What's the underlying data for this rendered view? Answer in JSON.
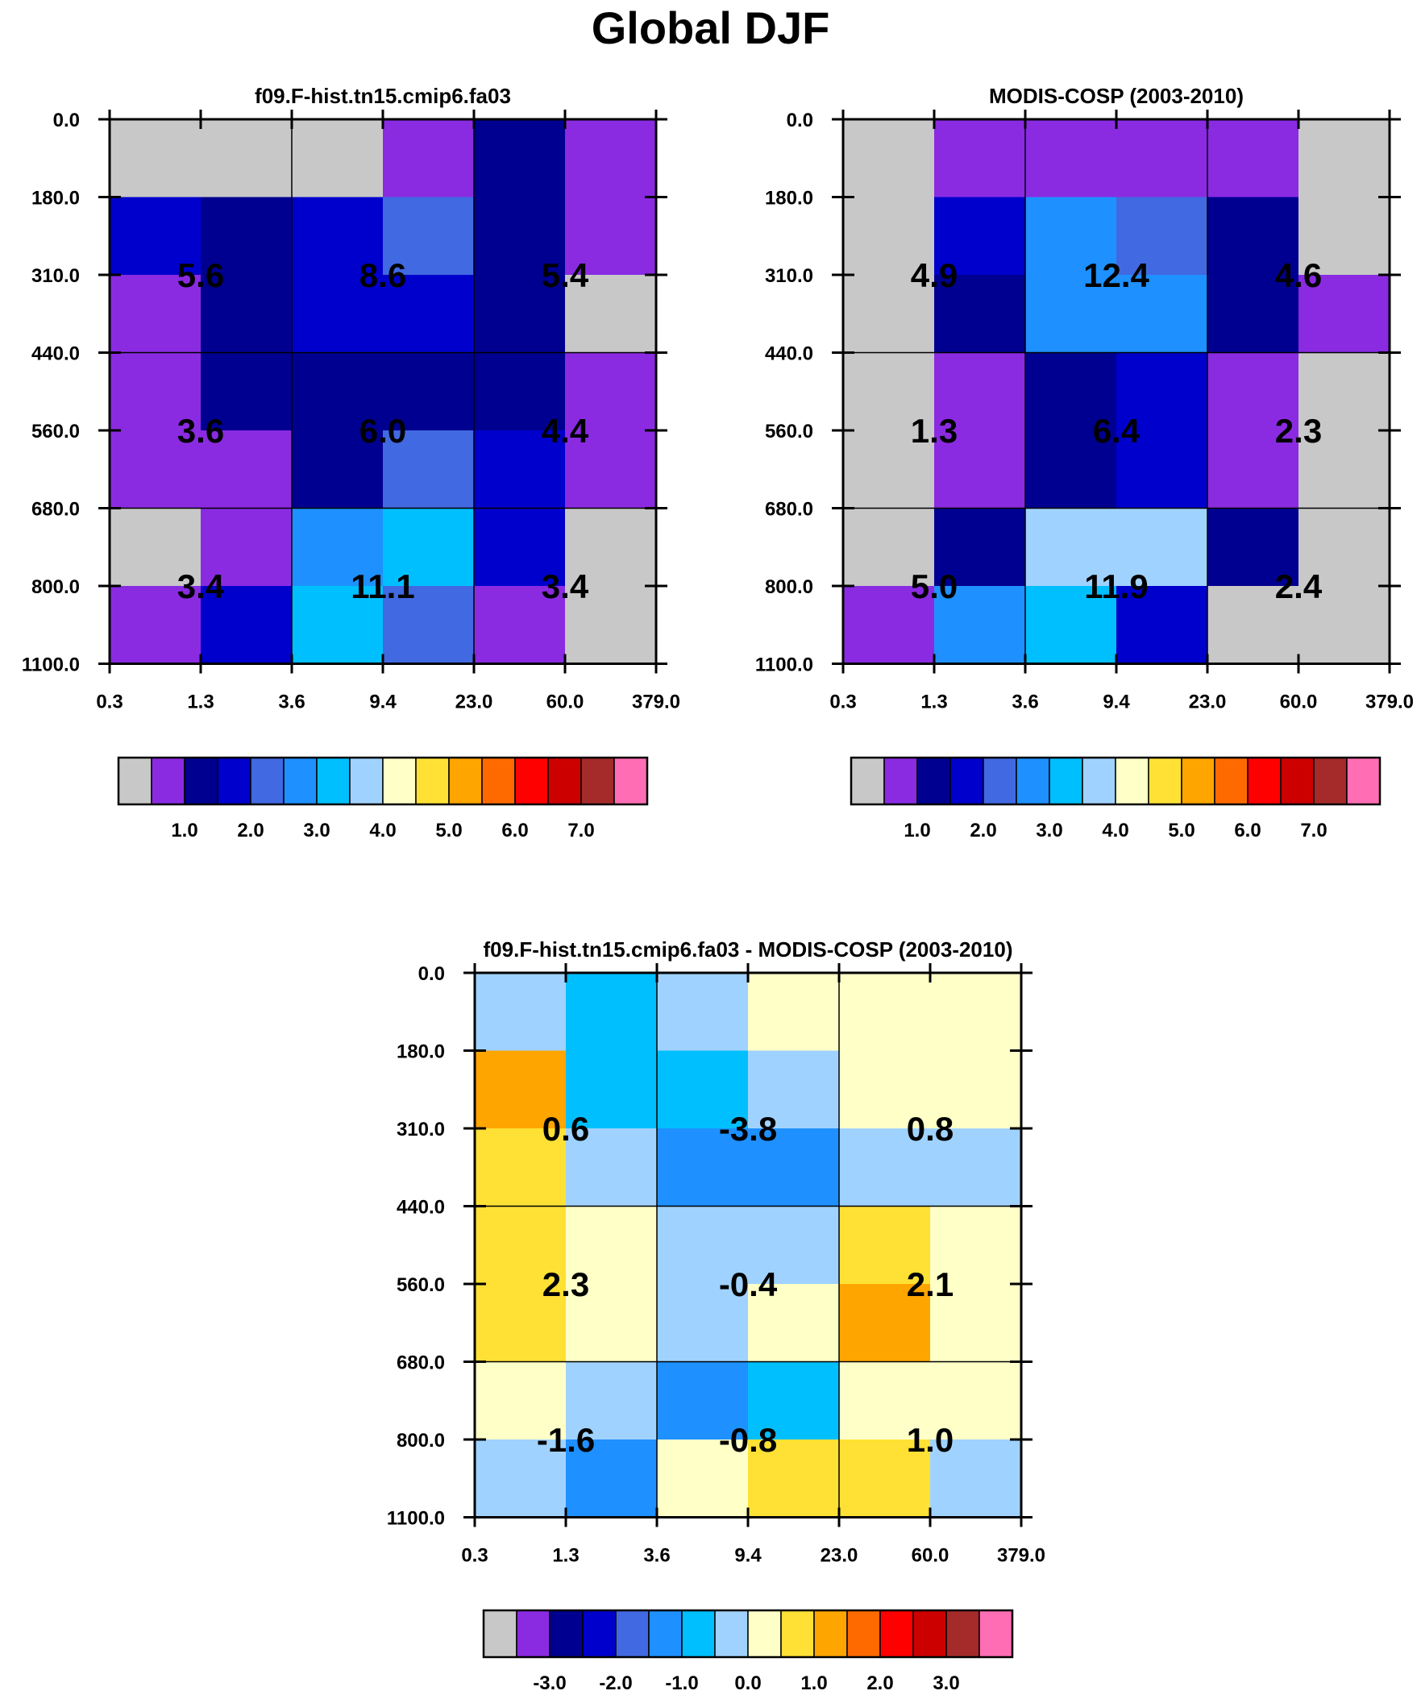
{
  "figure": {
    "title": "Global DJF"
  },
  "colors": {
    "palette": [
      "#c8c8c8",
      "#8a2be2",
      "#000090",
      "#0000cd",
      "#4169e1",
      "#1e90ff",
      "#00bfff",
      "#a0d2ff",
      "#ffffc8",
      "#ffe135",
      "#ffa500",
      "#ff6a00",
      "#ff0000",
      "#cd0000",
      "#a52a2a",
      "#ff6eb4"
    ]
  },
  "chart_data": [
    {
      "type": "heatmap",
      "title": "f09.F-hist.tn15.cmip6.fa03",
      "x_ticks": [
        "0.3",
        "1.3",
        "3.6",
        "9.4",
        "23.0",
        "60.0",
        "379.0"
      ],
      "y_ticks": [
        "0.0",
        "180.0",
        "310.0",
        "440.0",
        "560.0",
        "680.0",
        "800.0",
        "1100.0"
      ],
      "cell_color_index": [
        [
          0,
          0,
          0,
          1,
          2,
          1
        ],
        [
          3,
          2,
          3,
          4,
          2,
          1
        ],
        [
          1,
          2,
          3,
          3,
          2,
          0
        ],
        [
          1,
          2,
          2,
          2,
          2,
          1
        ],
        [
          1,
          1,
          2,
          4,
          3,
          1
        ],
        [
          0,
          1,
          5,
          6,
          3,
          0
        ],
        [
          1,
          3,
          6,
          4,
          1,
          0
        ]
      ],
      "box_labels": [
        [
          "5.6",
          "8.6",
          "5.4"
        ],
        [
          "3.6",
          "6.0",
          "4.4"
        ],
        [
          "3.4",
          "11.1",
          "3.4"
        ]
      ],
      "colorbar": {
        "labels": [
          "1.0",
          "2.0",
          "3.0",
          "4.0",
          "5.0",
          "6.0",
          "7.0"
        ]
      }
    },
    {
      "type": "heatmap",
      "title": "MODIS-COSP (2003-2010)",
      "x_ticks": [
        "0.3",
        "1.3",
        "3.6",
        "9.4",
        "23.0",
        "60.0",
        "379.0"
      ],
      "y_ticks": [
        "0.0",
        "180.0",
        "310.0",
        "440.0",
        "560.0",
        "680.0",
        "800.0",
        "1100.0"
      ],
      "cell_color_index": [
        [
          0,
          1,
          1,
          1,
          1,
          0
        ],
        [
          0,
          3,
          5,
          4,
          2,
          0
        ],
        [
          0,
          2,
          5,
          5,
          2,
          1
        ],
        [
          0,
          1,
          2,
          3,
          1,
          0
        ],
        [
          0,
          1,
          2,
          3,
          1,
          0
        ],
        [
          0,
          2,
          7,
          7,
          2,
          0
        ],
        [
          1,
          5,
          6,
          3,
          0,
          0
        ]
      ],
      "box_labels": [
        [
          "4.9",
          "12.4",
          "4.6"
        ],
        [
          "1.3",
          "6.4",
          "2.3"
        ],
        [
          "5.0",
          "11.9",
          "2.4"
        ]
      ],
      "colorbar": {
        "labels": [
          "1.0",
          "2.0",
          "3.0",
          "4.0",
          "5.0",
          "6.0",
          "7.0"
        ]
      }
    },
    {
      "type": "heatmap",
      "title": "f09.F-hist.tn15.cmip6.fa03 - MODIS-COSP (2003-2010)",
      "x_ticks": [
        "0.3",
        "1.3",
        "3.6",
        "9.4",
        "23.0",
        "60.0",
        "379.0"
      ],
      "y_ticks": [
        "0.0",
        "180.0",
        "310.0",
        "440.0",
        "560.0",
        "680.0",
        "800.0",
        "1100.0"
      ],
      "cell_color_index": [
        [
          7,
          6,
          7,
          8,
          8,
          8
        ],
        [
          10,
          6,
          6,
          7,
          8,
          8
        ],
        [
          9,
          7,
          5,
          5,
          7,
          7
        ],
        [
          9,
          8,
          7,
          7,
          9,
          8
        ],
        [
          9,
          8,
          7,
          8,
          10,
          8
        ],
        [
          8,
          7,
          5,
          6,
          8,
          8
        ],
        [
          7,
          5,
          8,
          9,
          9,
          7
        ]
      ],
      "box_labels": [
        [
          "0.6",
          "-3.8",
          "0.8"
        ],
        [
          "2.3",
          "-0.4",
          "2.1"
        ],
        [
          "-1.6",
          "-0.8",
          "1.0"
        ]
      ],
      "colorbar": {
        "labels": [
          "-3.0",
          "-2.0",
          "-1.0",
          "0.0",
          "1.0",
          "2.0",
          "3.0"
        ]
      }
    }
  ]
}
